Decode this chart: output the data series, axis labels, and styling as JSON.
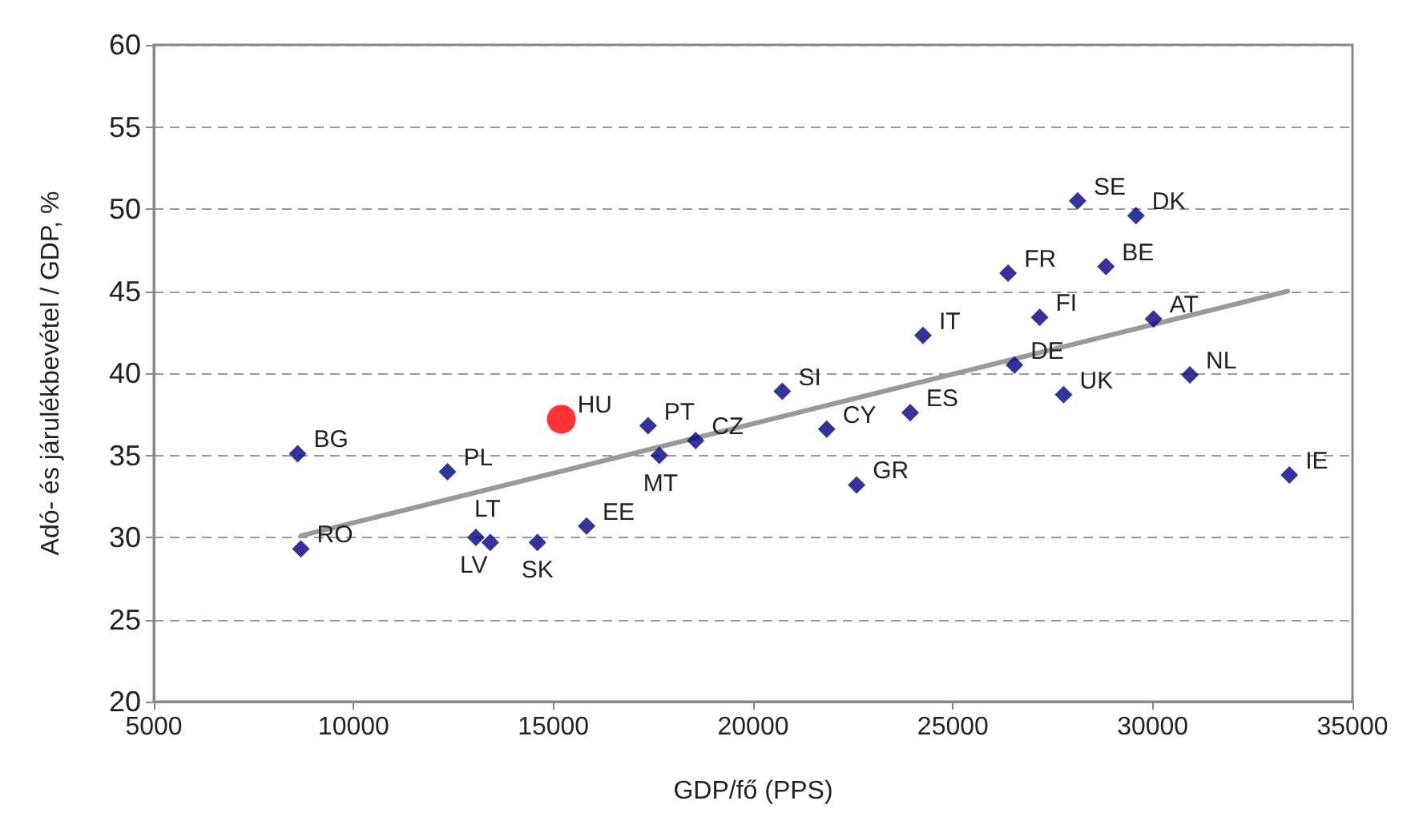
{
  "chart_data": {
    "type": "scatter",
    "xlabel": "GDP/fő (PPS)",
    "ylabel": "Adó- és járulékbevétel / GDP, %",
    "xlim": [
      5000,
      35000
    ],
    "xticks": [
      5000,
      10000,
      15000,
      20000,
      25000,
      30000,
      35000
    ],
    "ylim": [
      20,
      60
    ],
    "yticks": [
      20,
      25,
      30,
      35,
      40,
      45,
      50,
      55,
      60
    ],
    "grid": "y",
    "series": [
      {
        "color": "#000080",
        "marker": "diamond",
        "x": [
          8600,
          8680,
          12350,
          13060,
          13420,
          14600,
          15830,
          17370,
          17650,
          18560,
          20730,
          21840,
          22590,
          23930,
          24250,
          26540,
          26380,
          27170,
          27770,
          28120,
          28830,
          29580,
          30020,
          30930,
          33420
        ],
        "values": [
          35.1,
          29.3,
          34.0,
          30.0,
          29.7,
          29.7,
          30.7,
          36.8,
          35.0,
          35.9,
          38.9,
          36.6,
          33.2,
          37.6,
          42.3,
          40.5,
          46.1,
          43.4,
          38.7,
          50.5,
          46.5,
          49.6,
          43.3,
          39.9,
          33.8
        ]
      },
      {
        "color": "#ff0000",
        "marker": "circle",
        "x": [
          15200
        ],
        "values": [
          37.2
        ]
      },
      {
        "type": "line",
        "color": "#999999",
        "marker": "none",
        "x": [
          8680,
          33380
        ],
        "values": [
          30.1,
          45.0
        ]
      }
    ],
    "annotations": [
      {
        "text": "BG",
        "x": 8600,
        "y": 35.1
      },
      {
        "text": "RO",
        "x": 8680,
        "y": 29.3
      },
      {
        "text": "PL",
        "x": 12350,
        "y": 34.0
      },
      {
        "text": "LV",
        "x": 13060,
        "y": 30.0
      },
      {
        "text": "LT",
        "x": 13420,
        "y": 29.7
      },
      {
        "text": "SK",
        "x": 14600,
        "y": 29.7
      },
      {
        "text": "EE",
        "x": 15830,
        "y": 30.7
      },
      {
        "text": "HU",
        "x": 15200,
        "y": 37.2
      },
      {
        "text": "PT",
        "x": 17370,
        "y": 36.8
      },
      {
        "text": "MT",
        "x": 17650,
        "y": 35.0
      },
      {
        "text": "CZ",
        "x": 18560,
        "y": 35.9
      },
      {
        "text": "SI",
        "x": 20730,
        "y": 38.9
      },
      {
        "text": "CY",
        "x": 21840,
        "y": 36.6
      },
      {
        "text": "GR",
        "x": 22590,
        "y": 33.2
      },
      {
        "text": "ES",
        "x": 23930,
        "y": 37.6
      },
      {
        "text": "IT",
        "x": 24250,
        "y": 42.3
      },
      {
        "text": "DE",
        "x": 26540,
        "y": 40.5
      },
      {
        "text": "FR",
        "x": 26380,
        "y": 46.1
      },
      {
        "text": "FI",
        "x": 27170,
        "y": 43.4
      },
      {
        "text": "UK",
        "x": 27770,
        "y": 38.7
      },
      {
        "text": "SE",
        "x": 28120,
        "y": 50.5
      },
      {
        "text": "BE",
        "x": 28830,
        "y": 46.5
      },
      {
        "text": "DK",
        "x": 29580,
        "y": 49.6
      },
      {
        "text": "AT",
        "x": 30020,
        "y": 43.3
      },
      {
        "text": "NL",
        "x": 30930,
        "y": 39.9
      },
      {
        "text": "IE",
        "x": 33420,
        "y": 33.8
      }
    ]
  }
}
